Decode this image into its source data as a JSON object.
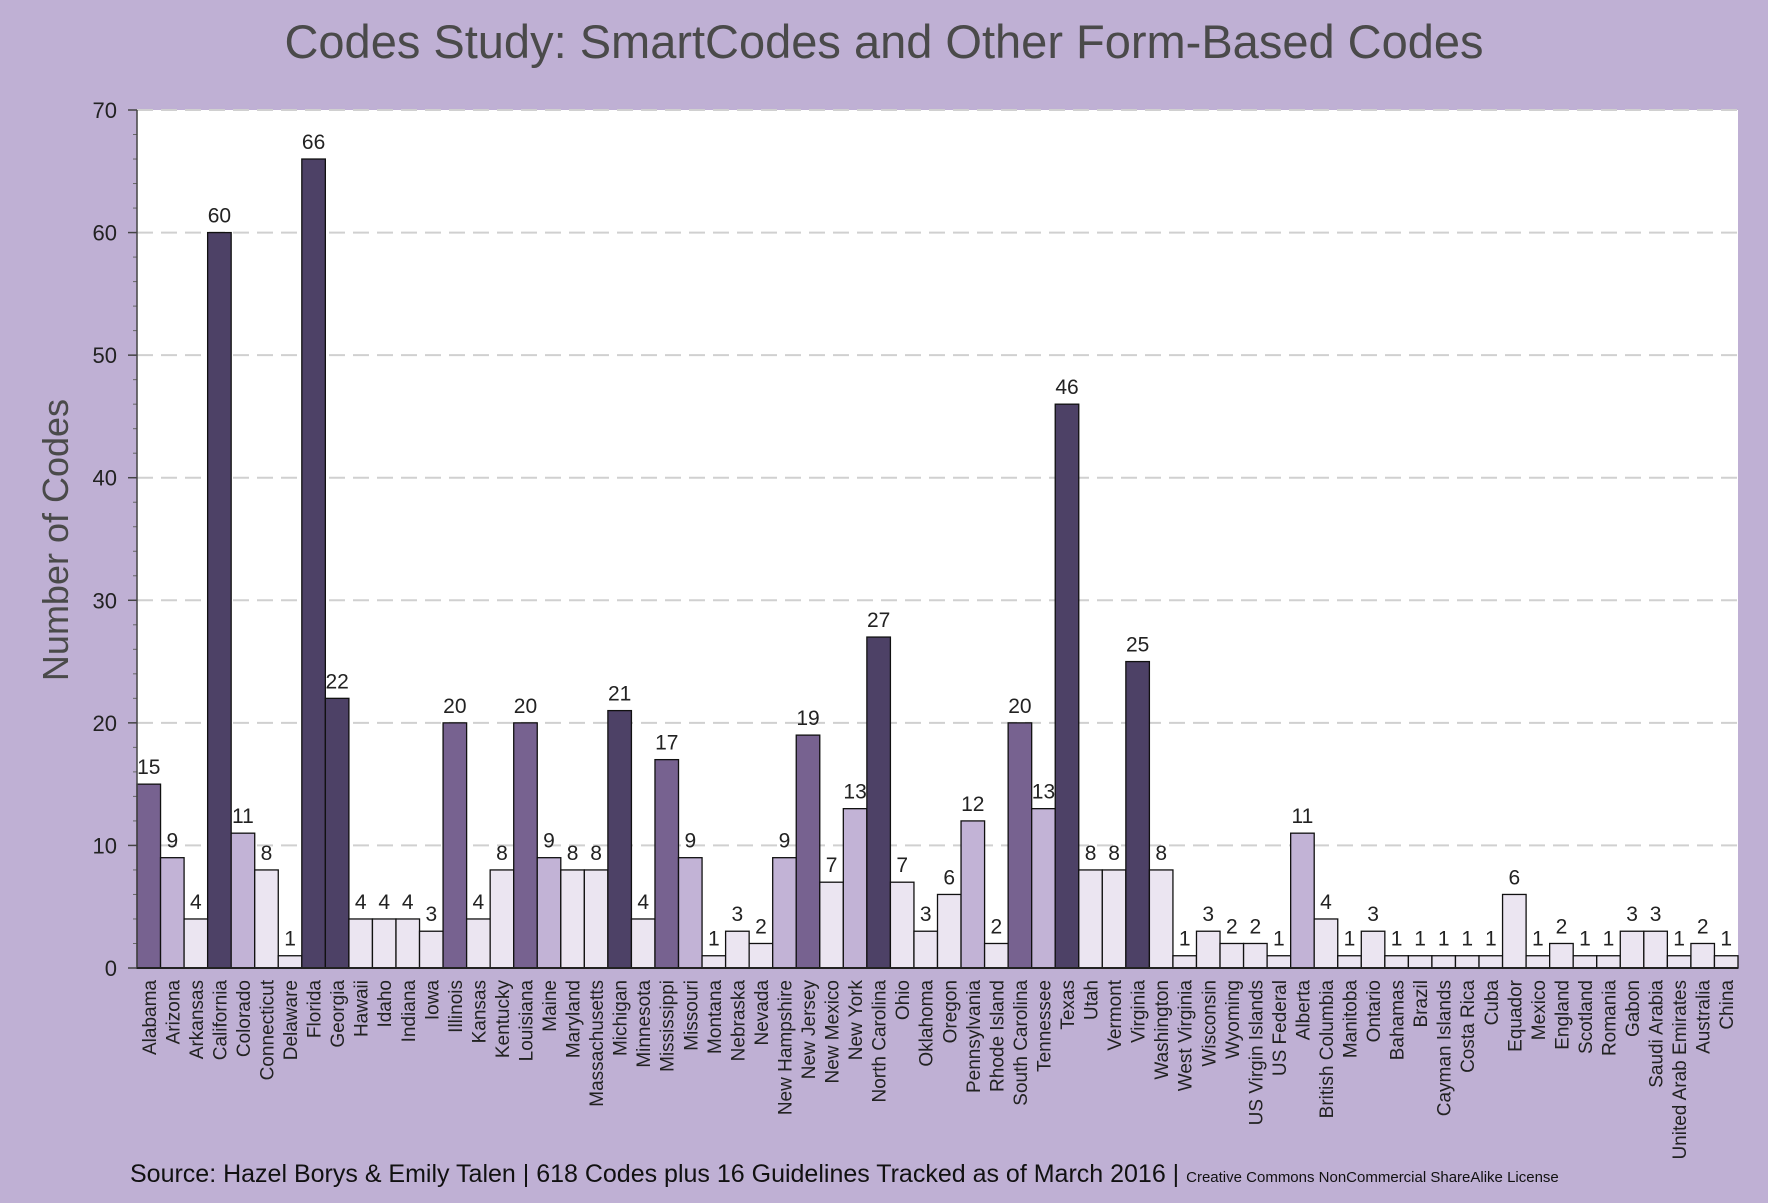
{
  "chart_data": {
    "type": "bar",
    "title": "Codes Study: SmartCodes and Other Form-Based Codes",
    "ylabel": "Number of Codes",
    "xlabel": "",
    "ylim": [
      0,
      70
    ],
    "yticks": [
      0,
      10,
      20,
      30,
      40,
      50,
      60,
      70
    ],
    "grid": true,
    "categories": [
      "Alabama",
      "Arizona",
      "Arkansas",
      "California",
      "Colorado",
      "Connecticut",
      "Delaware",
      "Florida",
      "Georgia",
      "Hawaii",
      "Idaho",
      "Indiana",
      "Iowa",
      "Illinois",
      "Kansas",
      "Kentucky",
      "Louisiana",
      "Maine",
      "Maryland",
      "Massachusetts",
      "Michigan",
      "Minnesota",
      "Mississippi",
      "Missouri",
      "Montana",
      "Nebraska",
      "Nevada",
      "New Hampshire",
      "New Jersey",
      "New Mexico",
      "New York",
      "North Carolina",
      "Ohio",
      "Oklahoma",
      "Oregon",
      "Pennsylvania",
      "Rhode Island",
      "South Carolina",
      "Tennessee",
      "Texas",
      "Utah",
      "Vermont",
      "Virginia",
      "Washington",
      "West Virginia",
      "Wisconsin",
      "Wyoming",
      "US Virgin Islands",
      "US Federal",
      "Alberta",
      "British Columbia",
      "Manitoba",
      "Ontario",
      "Bahamas",
      "Brazil",
      "Cayman Islands",
      "Costa Rica",
      "Cuba",
      "Equador",
      "Mexico",
      "England",
      "Scotland",
      "Romania",
      "Gabon",
      "Saudi Arabia",
      "United Arab Emirates",
      "Australia",
      "China"
    ],
    "values": [
      15,
      9,
      4,
      60,
      11,
      8,
      1,
      66,
      22,
      4,
      4,
      4,
      3,
      20,
      4,
      8,
      20,
      9,
      8,
      8,
      21,
      4,
      17,
      9,
      1,
      3,
      2,
      9,
      19,
      7,
      13,
      27,
      7,
      3,
      6,
      12,
      2,
      20,
      13,
      46,
      8,
      8,
      25,
      8,
      1,
      3,
      2,
      2,
      1,
      11,
      4,
      1,
      3,
      1,
      1,
      1,
      1,
      1,
      6,
      1,
      2,
      1,
      1,
      3,
      3,
      1,
      2,
      1
    ]
  },
  "colors": {
    "background": "#bfb0d4",
    "plot_area": "#ffffff",
    "bar_darkest": "#4d4166",
    "bar_dark": "#776290",
    "bar_medium": "#c2b3d6",
    "bar_light": "#ebe5f1",
    "bar_outline": "#111111"
  },
  "footer": {
    "main": "Source: Hazel Borys & Emily Talen | 618 Codes plus 16 Guidelines Tracked as of March 2016 |",
    "license": "Creative Commons NonCommercial ShareAlike License"
  }
}
